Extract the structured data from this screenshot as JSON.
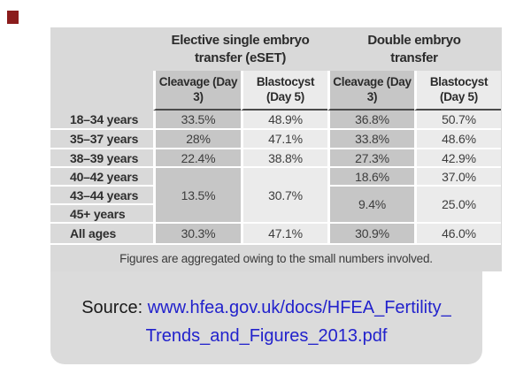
{
  "chart_data": {
    "type": "table",
    "column_groups": [
      {
        "title": "Elective single embryo transfer (eSET)"
      },
      {
        "title": "Double embryo transfer"
      }
    ],
    "sub_headers": [
      "Cleavage (Day 3)",
      "Blastocyst (Day 5)",
      "Cleavage (Day 3)",
      "Blastocyst (Day 5)"
    ],
    "rows": [
      {
        "label": "18–34 years",
        "c1": "33.5%",
        "c2": "48.9%",
        "c3": "36.8%",
        "c4": "50.7%"
      },
      {
        "label": "35–37 years",
        "c1": "28%",
        "c2": "47.1%",
        "c3": "33.8%",
        "c4": "48.6%"
      },
      {
        "label": "38–39 years",
        "c1": "22.4%",
        "c2": "38.8%",
        "c3": "27.3%",
        "c4": "42.9%"
      },
      {
        "label": "40–42 years",
        "c3": "18.6%",
        "c4": "37.0%"
      },
      {
        "label": "43–44 years"
      },
      {
        "label": "45+ years"
      },
      {
        "label": "All ages",
        "c1": "30.3%",
        "c2": "47.1%",
        "c3": "30.9%",
        "c4": "46.0%"
      }
    ],
    "merged_cells": {
      "eset_cleavage": {
        "rows": "40–42 / 43–44 / 45+",
        "value": "13.5%"
      },
      "eset_blastocyst": {
        "rows": "40–42 / 43–44 / 45+",
        "value": "30.7%"
      },
      "det_cleavage": {
        "rows": "43–44 / 45+",
        "value": "9.4%"
      },
      "det_blastocyst": {
        "rows": "43–44 / 45+",
        "value": "25.0%"
      }
    },
    "footnote": "Figures are aggregated owing to the small numbers involved.",
    "layout_hints": {
      "dark_column_color": "#c6c6c6",
      "light_column_color": "#ebebeb",
      "panel_color": "#d9d9d9"
    }
  },
  "source": {
    "prefix": "Source: ",
    "link_line1": "www.hfea.gov.uk/docs/HFEA_Fertility_",
    "link_line2": "Trends_and_Figures_2013.pdf"
  },
  "marker_color": "#8b1c1c"
}
